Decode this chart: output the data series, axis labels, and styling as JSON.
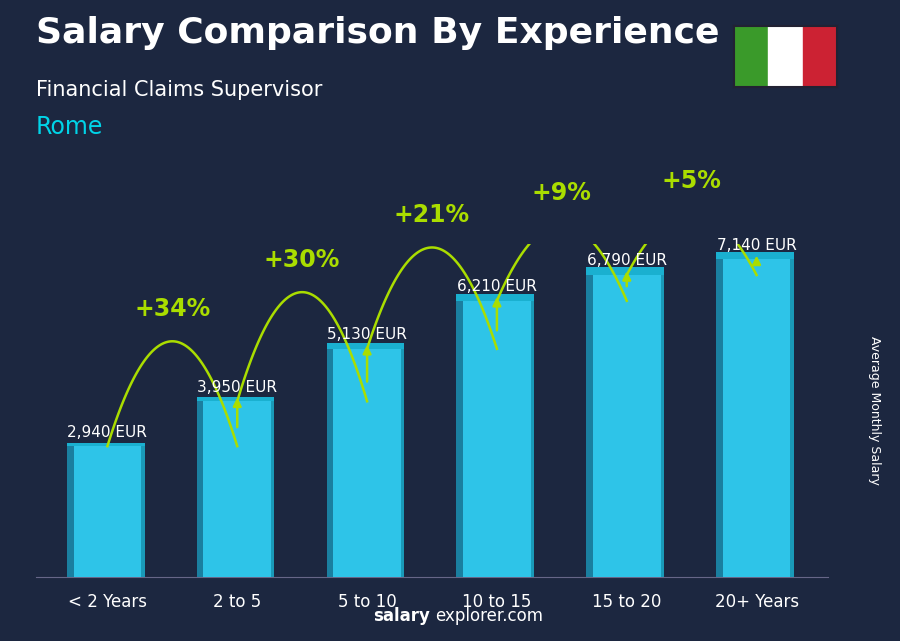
{
  "title": "Salary Comparison By Experience",
  "subtitle": "Financial Claims Supervisor",
  "city": "Rome",
  "ylabel": "Average Monthly Salary",
  "footer_bold": "salary",
  "footer_normal": "explorer.com",
  "categories": [
    "< 2 Years",
    "2 to 5",
    "5 to 10",
    "10 to 15",
    "15 to 20",
    "20+ Years"
  ],
  "values": [
    2940,
    3950,
    5130,
    6210,
    6790,
    7140
  ],
  "labels": [
    "2,940 EUR",
    "3,950 EUR",
    "5,130 EUR",
    "6,210 EUR",
    "6,790 EUR",
    "7,140 EUR"
  ],
  "pct_changes": [
    "+34%",
    "+30%",
    "+21%",
    "+9%",
    "+5%"
  ],
  "bar_color_face": "#2ec4e8",
  "bar_color_left": "#1a7fa0",
  "bar_color_right": "#1a9ab8",
  "bar_color_top": "#1ab0d0",
  "bg_color": "#1c2740",
  "title_color": "#ffffff",
  "subtitle_color": "#ffffff",
  "city_color": "#00d4e8",
  "label_color": "#ffffff",
  "pct_color": "#aadd00",
  "arrow_color": "#aadd00",
  "footer_color": "#ffffff",
  "italy_green": "#3a9a2a",
  "italy_white": "#ffffff",
  "italy_red": "#cc2233",
  "title_fontsize": 26,
  "subtitle_fontsize": 15,
  "city_fontsize": 17,
  "label_fontsize": 11,
  "pct_fontsize": 17,
  "footer_fontsize": 12,
  "ylabel_fontsize": 9,
  "xtick_fontsize": 12
}
